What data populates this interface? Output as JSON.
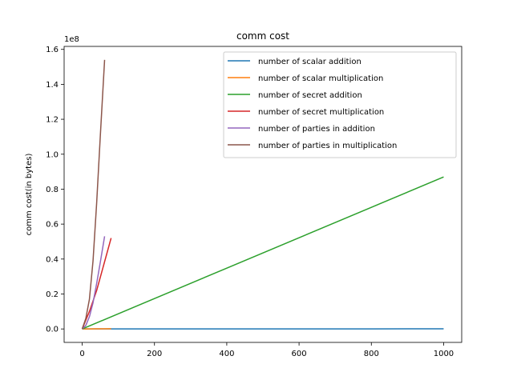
{
  "chart_data": {
    "type": "line",
    "title": "comm cost",
    "xlabel": "",
    "ylabel": "comm cost(in bytes)",
    "y_offset_label": "1e8",
    "xlim": [
      -50,
      1050
    ],
    "ylim": [
      -0.077,
      1.617
    ],
    "xticks": [
      0,
      200,
      400,
      600,
      800,
      1000
    ],
    "yticks": [
      0.0,
      0.2,
      0.4,
      0.6,
      0.8,
      1.0,
      1.2,
      1.4,
      1.6
    ],
    "ytick_labels": [
      "0.0",
      "0.2",
      "0.4",
      "0.6",
      "0.8",
      "1.0",
      "1.2",
      "1.4",
      "1.6"
    ],
    "legend_position": "upper right",
    "series": [
      {
        "name": "number of scalar addition",
        "color": "#1f77b4",
        "x": [
          0,
          100,
          200,
          400,
          600,
          800,
          1000
        ],
        "y": [
          0,
          0.0001,
          0.0002,
          0.0003,
          0.0004,
          0.0005,
          0.0006
        ]
      },
      {
        "name": "number of scalar multiplication",
        "color": "#ff7f0e",
        "x": [
          0,
          20,
          40,
          60,
          80
        ],
        "y": [
          0,
          0.0003,
          0.0006,
          0.0009,
          0.0012
        ]
      },
      {
        "name": "number of secret addition",
        "color": "#2ca02c",
        "x": [
          0,
          200,
          400,
          600,
          800,
          1000
        ],
        "y": [
          0,
          0.174,
          0.348,
          0.522,
          0.696,
          0.87
        ]
      },
      {
        "name": "number of secret multiplication",
        "color": "#d62728",
        "x": [
          0,
          10,
          20,
          40,
          60,
          80
        ],
        "y": [
          0,
          0.05,
          0.1,
          0.22,
          0.37,
          0.52
        ]
      },
      {
        "name": "number of parties in addition",
        "color": "#9467bd",
        "x": [
          0,
          10,
          20,
          30,
          40,
          50,
          62
        ],
        "y": [
          0,
          0.02,
          0.07,
          0.15,
          0.26,
          0.38,
          0.53
        ]
      },
      {
        "name": "number of parties in multiplication",
        "color": "#8c564b",
        "x": [
          0,
          10,
          20,
          30,
          40,
          50,
          62
        ],
        "y": [
          0,
          0.06,
          0.17,
          0.39,
          0.72,
          1.1,
          1.54
        ]
      }
    ]
  }
}
